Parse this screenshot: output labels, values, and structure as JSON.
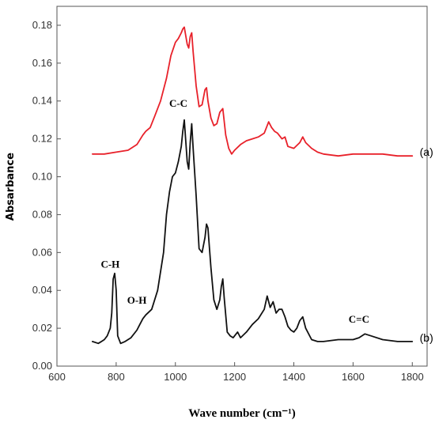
{
  "chart_data": {
    "type": "line",
    "xlabel": "Wave number (cm⁻¹)",
    "ylabel": "Absarbance",
    "xlim": [
      600,
      1850
    ],
    "ylim": [
      0,
      0.19
    ],
    "x_ticks": [
      600,
      800,
      1000,
      1200,
      1400,
      1600,
      1800
    ],
    "x_tick_labels": [
      "600",
      "800",
      "1000",
      "1200",
      "1400",
      "1600",
      "1800"
    ],
    "y_ticks": [
      0.0,
      0.02,
      0.04,
      0.06,
      0.08,
      0.1,
      0.12,
      0.14,
      0.16,
      0.18
    ],
    "y_tick_labels": [
      "0.00",
      "0.02",
      "0.04",
      "0.06",
      "0.08",
      "0.10",
      "0.12",
      "0.14",
      "0.16",
      "0.18"
    ],
    "grid": false,
    "series": [
      {
        "name": "(a)",
        "color": "#e8212a",
        "x": [
          720,
          760,
          800,
          840,
          870,
          890,
          900,
          915,
          930,
          950,
          970,
          985,
          1000,
          1010,
          1020,
          1025,
          1030,
          1040,
          1045,
          1050,
          1055,
          1060,
          1070,
          1080,
          1090,
          1100,
          1105,
          1110,
          1120,
          1130,
          1140,
          1150,
          1160,
          1170,
          1180,
          1190,
          1200,
          1220,
          1240,
          1260,
          1280,
          1300,
          1315,
          1325,
          1335,
          1345,
          1360,
          1370,
          1380,
          1400,
          1420,
          1430,
          1440,
          1460,
          1480,
          1500,
          1550,
          1600,
          1650,
          1700,
          1750,
          1800
        ],
        "y": [
          0.112,
          0.112,
          0.113,
          0.114,
          0.117,
          0.122,
          0.124,
          0.126,
          0.132,
          0.14,
          0.152,
          0.164,
          0.171,
          0.173,
          0.176,
          0.178,
          0.179,
          0.17,
          0.168,
          0.174,
          0.176,
          0.166,
          0.148,
          0.137,
          0.138,
          0.146,
          0.147,
          0.14,
          0.131,
          0.127,
          0.128,
          0.134,
          0.136,
          0.122,
          0.115,
          0.112,
          0.114,
          0.117,
          0.119,
          0.12,
          0.121,
          0.123,
          0.129,
          0.126,
          0.124,
          0.123,
          0.12,
          0.121,
          0.116,
          0.115,
          0.118,
          0.121,
          0.118,
          0.115,
          0.113,
          0.112,
          0.111,
          0.112,
          0.112,
          0.112,
          0.111,
          0.111
        ]
      },
      {
        "name": "(b)",
        "color": "#111111",
        "x": [
          720,
          740,
          760,
          770,
          780,
          785,
          790,
          795,
          800,
          805,
          815,
          830,
          850,
          870,
          880,
          890,
          900,
          920,
          940,
          960,
          970,
          980,
          990,
          1000,
          1010,
          1020,
          1025,
          1030,
          1040,
          1045,
          1050,
          1055,
          1060,
          1070,
          1080,
          1090,
          1100,
          1105,
          1110,
          1120,
          1130,
          1140,
          1150,
          1155,
          1160,
          1165,
          1175,
          1185,
          1195,
          1210,
          1220,
          1240,
          1260,
          1280,
          1300,
          1310,
          1320,
          1330,
          1340,
          1350,
          1360,
          1370,
          1380,
          1390,
          1400,
          1410,
          1420,
          1430,
          1440,
          1460,
          1480,
          1500,
          1550,
          1600,
          1620,
          1640,
          1660,
          1700,
          1750,
          1800
        ],
        "y": [
          0.013,
          0.012,
          0.014,
          0.016,
          0.02,
          0.028,
          0.046,
          0.049,
          0.04,
          0.016,
          0.012,
          0.013,
          0.015,
          0.019,
          0.022,
          0.025,
          0.027,
          0.03,
          0.04,
          0.06,
          0.08,
          0.092,
          0.1,
          0.102,
          0.108,
          0.116,
          0.124,
          0.13,
          0.108,
          0.104,
          0.118,
          0.128,
          0.115,
          0.09,
          0.062,
          0.06,
          0.068,
          0.075,
          0.073,
          0.052,
          0.035,
          0.03,
          0.035,
          0.042,
          0.046,
          0.036,
          0.018,
          0.016,
          0.015,
          0.018,
          0.015,
          0.018,
          0.022,
          0.025,
          0.03,
          0.037,
          0.031,
          0.034,
          0.028,
          0.03,
          0.03,
          0.026,
          0.021,
          0.019,
          0.018,
          0.02,
          0.024,
          0.026,
          0.02,
          0.014,
          0.013,
          0.013,
          0.014,
          0.014,
          0.015,
          0.017,
          0.016,
          0.014,
          0.013,
          0.013
        ]
      }
    ],
    "annotations": [
      {
        "text": "C-H",
        "x": 780,
        "y": 0.052
      },
      {
        "text": "O-H",
        "x": 870,
        "y": 0.033
      },
      {
        "text": "C-C",
        "x": 1010,
        "y": 0.137
      },
      {
        "text": "C=C",
        "x": 1620,
        "y": 0.023
      },
      {
        "text": "(a)",
        "x": 1825,
        "y": 0.111
      },
      {
        "text": "(b)",
        "x": 1825,
        "y": 0.013
      }
    ]
  }
}
